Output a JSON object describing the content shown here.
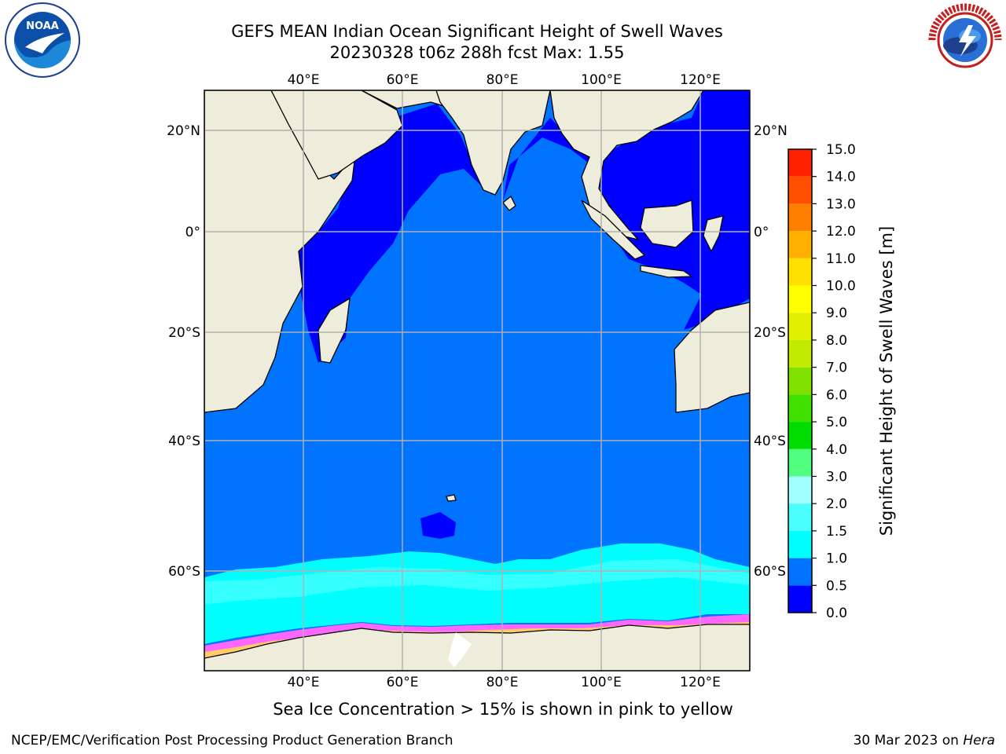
{
  "header": {
    "title_line1": "GEFS MEAN Indian Ocean Significant Height of Swell Waves",
    "title_line2": "20230328 t06z 288h fcst   Max: 1.55"
  },
  "logos": {
    "left": {
      "icon": "noaa-logo",
      "text": "NOAA",
      "ring_text": "NATIONAL OCEANIC AND ATMOSPHERIC ADMINISTRATION · U.S. DEPARTMENT OF COMMERCE"
    },
    "right": {
      "icon": "national-weather-service-logo",
      "ring_text": "NATIONAL WEATHER SERVICE"
    }
  },
  "map": {
    "lon_range": [
      20,
      130
    ],
    "lat_range": [
      -74,
      28
    ],
    "lon_ticks": [
      "40°E",
      "60°E",
      "80°E",
      "100°E",
      "120°E"
    ],
    "lat_ticks": [
      "20°N",
      "0°",
      "20°S",
      "40°S",
      "60°S"
    ],
    "grid": true,
    "colors": {
      "land": "#eeecdb",
      "ocean_low": "#0000ff",
      "ocean_mid": "#0074ff",
      "ocean_high": "#00ffff",
      "sea_ice": [
        "#ff66ff",
        "#ffcc66",
        "#ffff66"
      ]
    }
  },
  "colorbar": {
    "label": "Significant Height of Swell Waves [m]",
    "levels": [
      "0.0",
      "0.5",
      "1.0",
      "1.5",
      "2.0",
      "3.0",
      "4.0",
      "5.0",
      "6.0",
      "7.0",
      "8.0",
      "9.0",
      "10.0",
      "11.0",
      "12.0",
      "13.0",
      "14.0",
      "15.0"
    ],
    "colors": [
      "#0000ff",
      "#0074ff",
      "#00ffff",
      "#4cffff",
      "#a0ffff",
      "#50ff80",
      "#00dd00",
      "#40e000",
      "#80e000",
      "#c0ea00",
      "#e0f000",
      "#ffff00",
      "#ffe000",
      "#ffb000",
      "#ff8000",
      "#ff5000",
      "#ff2000"
    ]
  },
  "note": "Sea Ice Concentration > 15% is shown in pink to yellow",
  "footer": {
    "left": "NCEP/EMC/Verification Post Processing Product Generation Branch",
    "right_date": "30 Mar 2023 on",
    "right_machine": "Hera"
  }
}
